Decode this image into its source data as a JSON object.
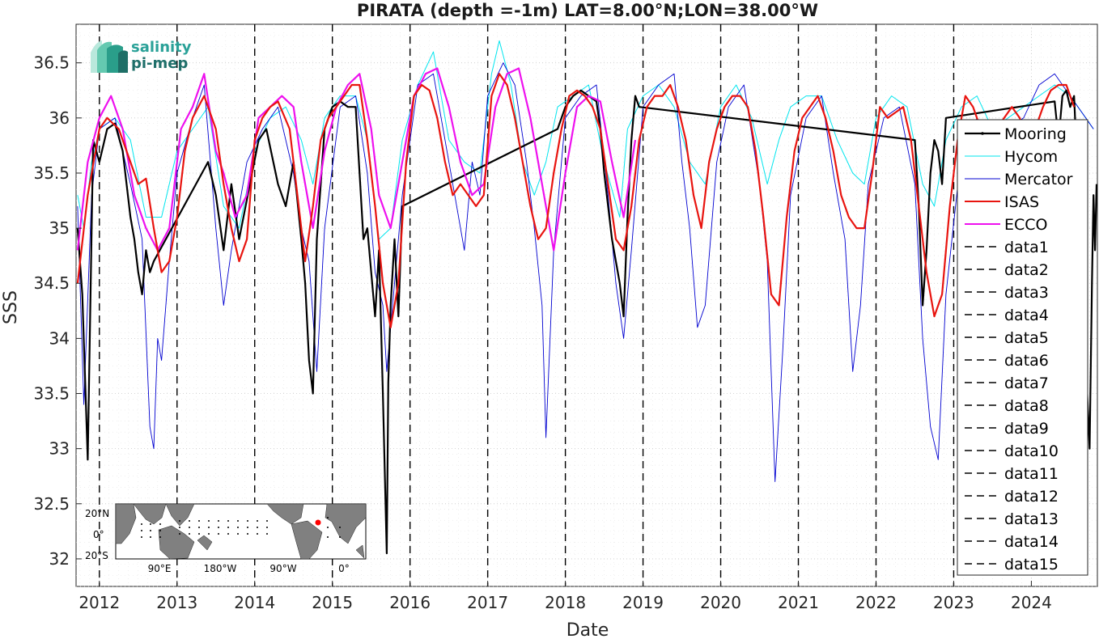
{
  "chart_data": {
    "type": "line",
    "title": "PIRATA (depth =-1m) LAT=8.00°N;LON=38.00°W",
    "xlabel": "Date",
    "ylabel": "SSS",
    "xlim": [
      2011.7,
      2024.85
    ],
    "ylim": [
      31.75,
      36.85
    ],
    "grid": true,
    "legend_position": "right",
    "x_ticks": [
      2012,
      2013,
      2014,
      2015,
      2016,
      2017,
      2018,
      2019,
      2020,
      2021,
      2022,
      2023,
      2024
    ],
    "x_tick_labels": [
      "2012",
      "2013",
      "2014",
      "2015",
      "2016",
      "2017",
      "2018",
      "2019",
      "2020",
      "2021",
      "2022",
      "2023",
      "2024"
    ],
    "y_ticks": [
      32,
      32.5,
      33,
      33.5,
      34,
      34.5,
      35,
      35.5,
      36,
      36.5
    ],
    "y_tick_labels": [
      "32",
      "32.5",
      "33",
      "33.5",
      "34",
      "34.5",
      "35",
      "35.5",
      "36",
      "36.5"
    ],
    "vlines": [
      2012.0,
      2013.0,
      2014.0,
      2015.0,
      2016.0,
      2017.0,
      2018.0,
      2019.0,
      2020.0,
      2021.0,
      2022.0,
      2023.0
    ],
    "series": [
      {
        "name": "Mooring",
        "color": "#000000",
        "width": 2.2,
        "style": "solid",
        "x": [
          2011.72,
          2011.78,
          2011.85,
          2011.92,
          2012.0,
          2012.1,
          2012.2,
          2012.3,
          2012.4,
          2012.45,
          2012.5,
          2012.55,
          2012.6,
          2012.65,
          2012.7,
          2013.4,
          2013.5,
          2013.6,
          2013.7,
          2013.8,
          2014.05,
          2014.15,
          2014.3,
          2014.4,
          2014.5,
          2014.6,
          2014.65,
          2014.7,
          2014.75,
          2014.8,
          2014.9,
          2015.0,
          2015.1,
          2015.2,
          2015.3,
          2015.4,
          2015.45,
          2015.5,
          2015.55,
          2015.6,
          2015.65,
          2015.7,
          2015.72,
          2015.75,
          2015.8,
          2015.85,
          2015.9,
          2017.9,
          2018.0,
          2018.1,
          2018.2,
          2018.3,
          2018.4,
          2018.45,
          2018.5,
          2018.55,
          2018.6,
          2018.65,
          2018.7,
          2018.75,
          2018.8,
          2018.85,
          2018.9,
          2018.95,
          2022.5,
          2022.55,
          2022.6,
          2022.65,
          2022.7,
          2022.75,
          2022.8,
          2022.85,
          2022.9,
          2024.3,
          2024.35,
          2024.4,
          2024.45,
          2024.5,
          2024.55,
          2024.75,
          2024.78,
          2024.8,
          2024.82,
          2024.84
        ],
        "y": [
          35.0,
          34.4,
          32.9,
          35.8,
          35.6,
          35.9,
          35.95,
          35.7,
          35.1,
          34.9,
          34.6,
          34.4,
          34.8,
          34.6,
          34.7,
          35.6,
          35.3,
          34.8,
          35.4,
          34.9,
          35.8,
          35.9,
          35.4,
          35.2,
          35.6,
          34.9,
          34.5,
          33.8,
          33.5,
          34.9,
          35.9,
          36.1,
          36.15,
          36.1,
          36.1,
          34.9,
          35.0,
          34.6,
          34.2,
          34.8,
          33.5,
          32.05,
          33.6,
          34.3,
          34.9,
          34.2,
          35.2,
          35.9,
          36.1,
          36.2,
          36.25,
          36.2,
          36.15,
          35.9,
          35.5,
          35.2,
          34.9,
          34.7,
          34.5,
          34.2,
          35.1,
          35.8,
          36.2,
          36.1,
          35.8,
          35.2,
          34.3,
          34.8,
          35.5,
          35.8,
          35.7,
          35.4,
          36.0,
          36.15,
          35.8,
          36.2,
          36.25,
          36.1,
          36.2,
          33.0,
          34.5,
          35.3,
          34.8,
          35.4
        ]
      },
      {
        "name": "Hycom",
        "color": "#00e5ee",
        "width": 1.0,
        "style": "solid",
        "x": [
          2011.72,
          2011.8,
          2011.9,
          2012.0,
          2012.2,
          2012.4,
          2012.6,
          2012.8,
          2013.0,
          2013.2,
          2013.4,
          2013.6,
          2013.8,
          2014.0,
          2014.2,
          2014.4,
          2014.6,
          2014.75,
          2014.9,
          2015.1,
          2015.3,
          2015.45,
          2015.6,
          2015.75,
          2015.9,
          2016.1,
          2016.3,
          2016.5,
          2016.7,
          2016.9,
          2017.05,
          2017.15,
          2017.3,
          2017.45,
          2017.6,
          2017.75,
          2017.9,
          2018.1,
          2018.3,
          2018.5,
          2018.7,
          2018.8,
          2019.0,
          2019.2,
          2019.4,
          2019.6,
          2019.8,
          2020.0,
          2020.2,
          2020.4,
          2020.6,
          2020.75,
          2020.9,
          2021.1,
          2021.3,
          2021.5,
          2021.7,
          2021.85,
          2022.0,
          2022.2,
          2022.4,
          2022.6,
          2022.75,
          2022.9,
          2023.1,
          2023.3,
          2023.5,
          2023.7,
          2023.9,
          2024.1,
          2024.3,
          2024.5,
          2024.7,
          2024.8
        ],
        "y": [
          35.3,
          35.0,
          35.6,
          35.9,
          36.0,
          35.8,
          35.1,
          35.1,
          35.7,
          35.9,
          36.1,
          35.2,
          35.0,
          35.7,
          36.0,
          36.1,
          35.8,
          35.4,
          36.0,
          36.2,
          36.2,
          35.8,
          34.9,
          35.0,
          35.8,
          36.3,
          36.6,
          35.8,
          35.6,
          35.5,
          36.4,
          36.7,
          36.3,
          35.6,
          35.3,
          35.6,
          36.1,
          36.2,
          36.3,
          35.6,
          35.1,
          35.9,
          36.2,
          36.3,
          36.1,
          35.6,
          35.4,
          36.1,
          36.3,
          36.0,
          35.4,
          35.8,
          36.1,
          36.2,
          36.2,
          35.8,
          35.5,
          35.4,
          36.0,
          36.2,
          36.1,
          35.4,
          35.2,
          35.8,
          36.1,
          36.2,
          35.9,
          36.0,
          36.1,
          36.2,
          36.3,
          36.2,
          36.0,
          35.9
        ]
      },
      {
        "name": "Mercator",
        "color": "#0000d0",
        "width": 0.9,
        "style": "solid",
        "x": [
          2011.72,
          2011.8,
          2011.9,
          2012.0,
          2012.2,
          2012.4,
          2012.55,
          2012.65,
          2012.7,
          2012.75,
          2012.8,
          2012.9,
          2013.0,
          2013.2,
          2013.35,
          2013.5,
          2013.6,
          2013.7,
          2013.8,
          2013.9,
          2014.1,
          2014.3,
          2014.5,
          2014.6,
          2014.7,
          2014.8,
          2014.9,
          2015.1,
          2015.3,
          2015.45,
          2015.55,
          2015.65,
          2015.7,
          2015.8,
          2015.9,
          2016.1,
          2016.3,
          2016.45,
          2016.6,
          2016.7,
          2016.8,
          2016.9,
          2017.0,
          2017.2,
          2017.35,
          2017.5,
          2017.6,
          2017.7,
          2017.75,
          2017.85,
          2018.0,
          2018.2,
          2018.4,
          2018.55,
          2018.65,
          2018.75,
          2018.85,
          2019.0,
          2019.2,
          2019.4,
          2019.5,
          2019.6,
          2019.7,
          2019.8,
          2019.95,
          2020.1,
          2020.3,
          2020.5,
          2020.6,
          2020.7,
          2020.8,
          2020.9,
          2021.1,
          2021.3,
          2021.45,
          2021.6,
          2021.7,
          2021.8,
          2021.9,
          2022.1,
          2022.3,
          2022.5,
          2022.6,
          2022.7,
          2022.8,
          2022.9,
          2023.1,
          2023.3,
          2023.5,
          2023.7,
          2023.9,
          2024.1,
          2024.3,
          2024.5,
          2024.7,
          2024.8
        ],
        "y": [
          35.2,
          33.4,
          35.3,
          35.9,
          36.0,
          35.4,
          34.9,
          33.2,
          33.0,
          34.0,
          33.8,
          34.7,
          35.5,
          36.0,
          36.3,
          35.0,
          34.3,
          34.8,
          35.2,
          35.6,
          35.9,
          36.1,
          35.5,
          35.0,
          34.7,
          33.7,
          35.0,
          36.1,
          36.2,
          35.5,
          34.6,
          34.3,
          33.7,
          34.5,
          35.3,
          36.3,
          36.4,
          35.8,
          35.2,
          34.8,
          35.6,
          35.3,
          36.2,
          36.5,
          36.3,
          35.6,
          35.0,
          34.3,
          33.1,
          34.8,
          36.0,
          36.2,
          36.3,
          35.3,
          34.5,
          34.0,
          34.8,
          36.1,
          36.3,
          36.4,
          35.6,
          35.0,
          34.1,
          34.3,
          35.6,
          36.1,
          36.3,
          35.4,
          34.7,
          32.7,
          33.9,
          35.3,
          36.0,
          36.2,
          35.5,
          34.9,
          33.7,
          34.3,
          35.4,
          36.0,
          36.1,
          35.4,
          34.0,
          33.2,
          32.9,
          34.4,
          35.7,
          36.0,
          35.8,
          35.9,
          36.0,
          36.3,
          36.4,
          36.2,
          36.0,
          35.9
        ]
      },
      {
        "name": "ISAS",
        "color": "#e8140f",
        "width": 2.2,
        "style": "solid",
        "x": [
          2011.72,
          2011.85,
          2012.0,
          2012.1,
          2012.25,
          2012.35,
          2012.5,
          2012.6,
          2012.7,
          2012.8,
          2012.9,
          2013.0,
          2013.1,
          2013.2,
          2013.35,
          2013.5,
          2013.6,
          2013.7,
          2013.8,
          2013.9,
          2014.0,
          2014.1,
          2014.2,
          2014.3,
          2014.45,
          2014.55,
          2014.65,
          2014.75,
          2014.85,
          2014.95,
          2015.05,
          2015.15,
          2015.25,
          2015.35,
          2015.45,
          2015.55,
          2015.65,
          2015.75,
          2015.85,
          2015.95,
          2016.05,
          2016.15,
          2016.25,
          2016.35,
          2016.45,
          2016.55,
          2016.65,
          2016.75,
          2016.85,
          2016.95,
          2017.05,
          2017.15,
          2017.25,
          2017.35,
          2017.45,
          2017.55,
          2017.65,
          2017.75,
          2017.85,
          2017.95,
          2018.05,
          2018.15,
          2018.25,
          2018.35,
          2018.45,
          2018.55,
          2018.65,
          2018.75,
          2018.85,
          2018.95,
          2019.05,
          2019.15,
          2019.25,
          2019.35,
          2019.45,
          2019.55,
          2019.65,
          2019.75,
          2019.85,
          2019.95,
          2020.05,
          2020.15,
          2020.25,
          2020.35,
          2020.45,
          2020.55,
          2020.65,
          2020.75,
          2020.85,
          2020.95,
          2021.05,
          2021.15,
          2021.25,
          2021.35,
          2021.45,
          2021.55,
          2021.65,
          2021.75,
          2021.85,
          2021.95,
          2022.05,
          2022.15,
          2022.25,
          2022.35,
          2022.45,
          2022.55,
          2022.65,
          2022.75,
          2022.85,
          2022.95,
          2023.05,
          2023.15,
          2023.25,
          2023.35,
          2023.45,
          2023.55,
          2023.65,
          2023.75,
          2023.85,
          2023.95,
          2024.05,
          2024.15,
          2024.25,
          2024.35,
          2024.45,
          2024.55
        ],
        "y": [
          34.5,
          35.3,
          35.9,
          36.0,
          35.9,
          35.7,
          35.4,
          35.45,
          35.0,
          34.6,
          34.7,
          35.1,
          35.7,
          36.0,
          36.2,
          35.9,
          35.4,
          35.0,
          34.7,
          34.9,
          35.8,
          36.0,
          36.1,
          36.15,
          35.9,
          35.3,
          34.7,
          35.2,
          35.8,
          36.0,
          36.1,
          36.2,
          36.3,
          36.3,
          35.8,
          35.2,
          34.5,
          34.1,
          34.5,
          35.6,
          36.2,
          36.3,
          36.25,
          36.0,
          35.6,
          35.3,
          35.4,
          35.3,
          35.2,
          35.3,
          36.2,
          36.4,
          36.3,
          36.0,
          35.6,
          35.2,
          34.9,
          35.0,
          35.5,
          35.9,
          36.2,
          36.25,
          36.2,
          36.1,
          35.9,
          35.4,
          34.9,
          34.8,
          35.2,
          35.8,
          36.1,
          36.2,
          36.2,
          36.3,
          36.1,
          35.8,
          35.3,
          35.0,
          35.6,
          35.9,
          36.1,
          36.2,
          36.2,
          36.1,
          35.7,
          35.1,
          34.4,
          34.3,
          35.1,
          35.7,
          36.0,
          36.1,
          36.2,
          36.0,
          35.7,
          35.3,
          35.1,
          35.0,
          35.0,
          35.5,
          36.1,
          36.0,
          36.05,
          36.1,
          35.8,
          35.2,
          34.6,
          34.2,
          34.4,
          35.2,
          35.8,
          36.2,
          36.1,
          35.9,
          35.7,
          35.9,
          36.0,
          36.1,
          36.0,
          35.8,
          35.9,
          36.1,
          36.25,
          36.3,
          36.3,
          36.1
        ]
      },
      {
        "name": "ECCO",
        "color": "#ee10ee",
        "width": 2.2,
        "style": "solid",
        "x": [
          2011.72,
          2011.85,
          2012.0,
          2012.15,
          2012.3,
          2012.45,
          2012.6,
          2012.75,
          2012.9,
          2013.05,
          2013.2,
          2013.35,
          2013.5,
          2013.6,
          2013.75,
          2013.9,
          2014.05,
          2014.2,
          2014.35,
          2014.5,
          2014.6,
          2014.75,
          2014.9,
          2015.05,
          2015.2,
          2015.35,
          2015.5,
          2015.6,
          2015.75,
          2015.9,
          2016.05,
          2016.2,
          2016.35,
          2016.5,
          2016.65,
          2016.8,
          2016.95,
          2017.1,
          2017.25,
          2017.4,
          2017.55,
          2017.7,
          2017.85,
          2018.0,
          2018.15,
          2018.3,
          2018.45,
          2018.6,
          2018.75,
          2018.9
        ],
        "y": [
          34.8,
          35.6,
          36.0,
          36.2,
          35.9,
          35.3,
          35.0,
          34.8,
          35.0,
          35.9,
          36.1,
          36.4,
          35.7,
          35.5,
          35.1,
          35.3,
          36.0,
          36.1,
          36.2,
          36.1,
          35.6,
          35.0,
          35.7,
          36.1,
          36.3,
          36.4,
          35.9,
          35.3,
          35.0,
          35.6,
          36.2,
          36.4,
          36.45,
          36.1,
          35.6,
          35.3,
          35.4,
          36.1,
          36.4,
          36.45,
          36.0,
          35.4,
          34.8,
          35.5,
          36.1,
          36.2,
          36.15,
          35.6,
          35.1,
          35.8
        ]
      }
    ]
  },
  "legend": {
    "entries": [
      "Mooring",
      "Hycom",
      "Mercator",
      "ISAS",
      "ECCO",
      "data1",
      "data2",
      "data3",
      "data4",
      "data5",
      "data6",
      "data7",
      "data8",
      "data9",
      "data10",
      "data11",
      "data12",
      "data13",
      "data14",
      "data15"
    ]
  },
  "logo": {
    "line1": "salinity",
    "line2": "pi-mep"
  },
  "inset_map": {
    "lat_labels": [
      "20°N",
      "0°",
      "20°S"
    ],
    "lon_labels": [
      "90°E",
      "180°W",
      "90°W",
      "0°"
    ]
  }
}
